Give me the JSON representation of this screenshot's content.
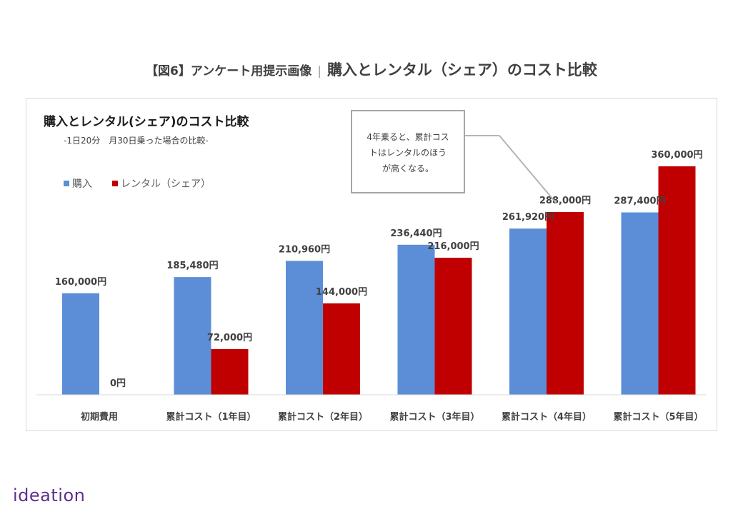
{
  "page": {
    "heading_prefix": "【図6】アンケート用提示画像",
    "heading_separator": "|",
    "heading_main": "購入とレンタル（シェア）のコスト比較",
    "logo": "ideation"
  },
  "chart_data": {
    "type": "bar",
    "title": "購入とレンタル(シェア)のコスト比較",
    "subtitle": "-1日20分　月30日乗った場合の比較-",
    "categories": [
      "初期費用",
      "累計コスト（1年目）",
      "累計コスト（2年目）",
      "累計コスト（3年目）",
      "累計コスト（4年目）",
      "累計コスト（5年目）"
    ],
    "series": [
      {
        "name": "購入",
        "color": "#5b8ed6",
        "values": [
          160000,
          185480,
          210960,
          236440,
          261920,
          287400
        ],
        "labels": [
          "160,000円",
          "185,480円",
          "210,960円",
          "236,440円",
          "261,920円",
          "287,400円"
        ]
      },
      {
        "name": "レンタル（シェア）",
        "color": "#c00000",
        "values": [
          0,
          72000,
          144000,
          216000,
          288000,
          360000
        ],
        "labels": [
          "0円",
          "72,000円",
          "144,000円",
          "216,000円",
          "288,000円",
          "360,000円"
        ]
      }
    ],
    "ylim": [
      0,
      360000
    ],
    "grid": false,
    "legend_position": "top-left",
    "annotation": {
      "lines": [
        "4年乗ると、累計コス",
        "トはレンタルのほう",
        "が高くなる。"
      ]
    }
  }
}
